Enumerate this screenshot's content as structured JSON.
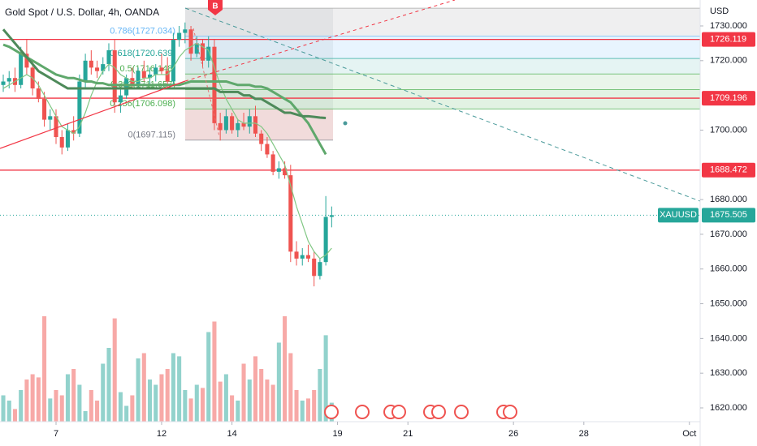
{
  "chart_data": {
    "type": "candlestick",
    "title": "Gold Spot / U.S. Dollar, 4h, OANDA",
    "currency": "USD",
    "symbol": "XAUUSD",
    "marker": "B",
    "xlim": [
      -9.557,
      109.833
    ],
    "ylim": [
      1616.03,
      1737.47
    ],
    "yticks": [
      {
        "value": 1730,
        "label": "1730.000"
      },
      {
        "value": 1720,
        "label": "1720.000"
      },
      {
        "value": 1700,
        "label": "1700.000"
      },
      {
        "value": 1680,
        "label": "1680.000"
      },
      {
        "value": 1670,
        "label": "1670.000"
      },
      {
        "value": 1660,
        "label": "1660.000"
      },
      {
        "value": 1650,
        "label": "1650.000"
      },
      {
        "value": 1640,
        "label": "1640.000"
      },
      {
        "value": 1630,
        "label": "1630.000"
      },
      {
        "value": 1620,
        "label": "1620.000"
      }
    ],
    "xticks": [
      {
        "value": 0,
        "label": "7"
      },
      {
        "value": 18,
        "label": "12"
      },
      {
        "value": 30,
        "label": "14"
      },
      {
        "value": 48,
        "label": "19"
      },
      {
        "value": 60,
        "label": "21"
      },
      {
        "value": 78,
        "label": "26"
      },
      {
        "value": 90,
        "label": "28"
      },
      {
        "value": 108,
        "label": "Oct"
      }
    ],
    "up_color": "#26a69a",
    "down_color": "#ef5350",
    "x": [
      -9,
      -8,
      -7,
      -6,
      -5,
      -4,
      -3,
      -2,
      -1,
      0,
      1,
      2,
      3,
      4,
      5,
      6,
      7,
      8,
      9,
      10,
      11,
      12,
      13,
      14,
      15,
      16,
      17,
      18,
      19,
      20,
      21,
      22,
      23,
      24,
      25,
      26,
      27,
      28,
      29,
      30,
      31,
      32,
      33,
      34,
      35,
      36,
      37,
      38,
      39,
      40,
      41,
      42,
      43,
      44,
      45,
      46,
      47
    ],
    "ohlc": [
      [
        1713,
        1716,
        1711,
        1714
      ],
      [
        1714,
        1717,
        1712,
        1715
      ],
      [
        1715,
        1718,
        1711,
        1713
      ],
      [
        1713,
        1724,
        1712,
        1722
      ],
      [
        1722,
        1726,
        1716,
        1718
      ],
      [
        1718,
        1720,
        1710,
        1712
      ],
      [
        1712,
        1714,
        1708,
        1709
      ],
      [
        1709,
        1711,
        1701,
        1703
      ],
      [
        1703,
        1706,
        1700,
        1704
      ],
      [
        1704,
        1706,
        1696,
        1698
      ],
      [
        1698,
        1700,
        1693,
        1695
      ],
      [
        1695,
        1702,
        1694,
        1700
      ],
      [
        1700,
        1704,
        1697,
        1699
      ],
      [
        1699,
        1716,
        1698,
        1714
      ],
      [
        1714,
        1722,
        1712,
        1720
      ],
      [
        1720,
        1723,
        1716,
        1718
      ],
      [
        1718,
        1720,
        1715,
        1717
      ],
      [
        1717,
        1721,
        1716,
        1719
      ],
      [
        1719,
        1725,
        1717,
        1723
      ],
      [
        1723,
        1726,
        1705,
        1708
      ],
      [
        1708,
        1712,
        1705,
        1710
      ],
      [
        1710,
        1716,
        1709,
        1715
      ],
      [
        1715,
        1718,
        1712,
        1713
      ],
      [
        1713,
        1718,
        1712,
        1717
      ],
      [
        1717,
        1720,
        1714,
        1715
      ],
      [
        1715,
        1718,
        1713,
        1716
      ],
      [
        1716,
        1719,
        1714,
        1718
      ],
      [
        1718,
        1722,
        1716,
        1717
      ],
      [
        1717,
        1721,
        1712,
        1714
      ],
      [
        1714,
        1728,
        1713,
        1726
      ],
      [
        1726,
        1730,
        1724,
        1728
      ],
      [
        1728,
        1731,
        1725,
        1729
      ],
      [
        1729,
        1730,
        1720,
        1722
      ],
      [
        1722,
        1727,
        1721,
        1725
      ],
      [
        1725,
        1726,
        1718,
        1720
      ],
      [
        1720,
        1727,
        1718,
        1724
      ],
      [
        1724,
        1726,
        1700,
        1702
      ],
      [
        1702,
        1705,
        1697,
        1700
      ],
      [
        1700,
        1706,
        1699,
        1704
      ],
      [
        1704,
        1705,
        1699,
        1700
      ],
      [
        1700,
        1703,
        1698,
        1702
      ],
      [
        1702,
        1705,
        1700,
        1701
      ],
      [
        1701,
        1706,
        1699,
        1704
      ],
      [
        1704,
        1707,
        1698,
        1699
      ],
      [
        1699,
        1700,
        1694,
        1696
      ],
      [
        1696,
        1698,
        1692,
        1693
      ],
      [
        1693,
        1694,
        1687,
        1688
      ],
      [
        1688,
        1691,
        1686,
        1689
      ],
      [
        1689,
        1691,
        1686,
        1687
      ],
      [
        1687,
        1690,
        1662,
        1665
      ],
      [
        1665,
        1668,
        1661,
        1663
      ],
      [
        1663,
        1666,
        1661,
        1664
      ],
      [
        1664,
        1667,
        1662,
        1663
      ],
      [
        1663,
        1665,
        1655,
        1658
      ],
      [
        1658,
        1663,
        1657,
        1662
      ],
      [
        1662,
        1681,
        1661,
        1675
      ],
      [
        1675,
        1678,
        1672,
        1675.505
      ]
    ],
    "volume": [
      25,
      20,
      12,
      30,
      40,
      45,
      42,
      100,
      22,
      30,
      25,
      45,
      50,
      35,
      10,
      30,
      20,
      55,
      70,
      98,
      28,
      15,
      25,
      60,
      65,
      40,
      35,
      45,
      50,
      65,
      62,
      30,
      22,
      35,
      32,
      85,
      95,
      38,
      45,
      25,
      20,
      55,
      40,
      62,
      50,
      40,
      35,
      75,
      100,
      65,
      30,
      20,
      22,
      30,
      50,
      82,
      18
    ],
    "series": [
      {
        "color": "#81c784",
        "width": 1.2,
        "values": [
          1712,
          1713,
          1714,
          1715,
          1716,
          1715,
          1713,
          1710,
          1707,
          1704,
          1701,
          1700,
          1699,
          1701,
          1705,
          1710,
          1714,
          1717,
          1719,
          1718,
          1716,
          1715,
          1714,
          1714,
          1715,
          1715,
          1716,
          1716,
          1716,
          1718,
          1721,
          1723,
          1724,
          1725,
          1724,
          1723,
          1718,
          1713,
          1709,
          1706,
          1703,
          1702,
          1702,
          1702,
          1701,
          1699,
          1696,
          1693,
          1690,
          1684,
          1678,
          1673,
          1668,
          1665,
          1663,
          1664,
          1666
        ]
      },
      {
        "color": "#5fa86c",
        "width": 3,
        "values": [
          1724.6,
          1724,
          1723,
          1722,
          1721,
          1720,
          1719,
          1718,
          1717,
          1716,
          1715.5,
          1715,
          1715,
          1714.5,
          1714,
          1714,
          1713.5,
          1713.5,
          1713,
          1713,
          1713,
          1713,
          1713,
          1713,
          1713,
          1713,
          1713,
          1713,
          1713,
          1713,
          1713,
          1713.5,
          1714,
          1714,
          1714,
          1714,
          1714,
          1714,
          1714,
          1713.5,
          1713,
          1713,
          1713,
          1712.5,
          1712.5,
          1712,
          1711,
          1710,
          1709,
          1708,
          1706,
          1704,
          1702,
          1699,
          1696,
          1693,
          null
        ]
      },
      {
        "color": "#4e8a5a",
        "width": 3,
        "values": [
          1729,
          1727,
          1725,
          1723,
          1721,
          1719,
          1717,
          1716,
          1715,
          1714,
          1713,
          1712,
          1712,
          1712,
          1712,
          1712,
          1712,
          1712,
          1712,
          1712,
          1712,
          1712,
          1712,
          1712,
          1712,
          1712,
          1712,
          1712,
          1712,
          1712,
          1712,
          1712,
          1712,
          1712,
          1712,
          1712,
          1712,
          1711,
          1711,
          1711,
          1711,
          1710,
          1710,
          1709,
          1709,
          1708,
          1707,
          1706,
          1705,
          1705,
          1704.5,
          1704,
          1704,
          1703.8,
          1703.6,
          1703.5,
          null
        ]
      }
    ],
    "fib": {
      "levels": [
        1735.1,
        1727.034,
        1720.639,
        1716.148,
        1711.657,
        1706.098,
        1697.115
      ],
      "labels": [
        null,
        "0.786(1727.034)",
        "0.618(1720.639)",
        "0.5(1716.148)",
        "0.382(1711.657)",
        "0.236(1706.098)",
        "0(1697.115)"
      ],
      "colors": [
        "#9e9e9e",
        "#64b5f6",
        "#26a69a",
        "#4caf50",
        "#4caf50",
        "#4caf50",
        "#787b86"
      ],
      "fills": [
        "rgba(120,123,134,0.12)",
        "rgba(100,181,246,0.15)",
        "rgba(38,166,154,0.12)",
        "rgba(76,175,80,0.12)",
        "rgba(76,175,80,0.16)",
        "rgba(239,83,80,0.14)"
      ]
    },
    "price_lines": [
      1726.119,
      1709.196,
      1688.472
    ],
    "price_line_color": "#f23645",
    "last_price": 1675.505
  }
}
